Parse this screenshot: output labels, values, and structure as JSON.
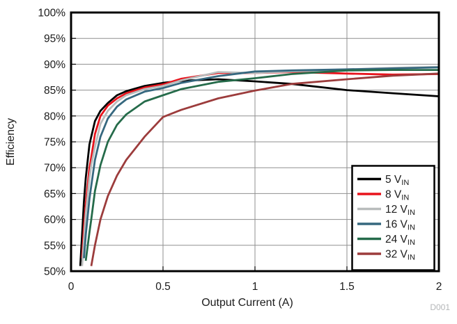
{
  "chart_data": {
    "type": "line",
    "title": "",
    "xlabel": "Output Current (A)",
    "ylabel": "Efficiency",
    "watermark": "D001",
    "xlim": [
      0,
      2
    ],
    "ylim": [
      50,
      100
    ],
    "grid": true,
    "legend_position": "bottom-right",
    "colors": {
      "grid": "#8f8f8f",
      "frame": "#000000",
      "text": "#1b1b1b",
      "legend_border": "#000000",
      "legend_bg": "#ffffff",
      "watermark": "#b4b6b8"
    },
    "xticks": [
      {
        "v": 0,
        "label": "0"
      },
      {
        "v": 0.5,
        "label": "0.5"
      },
      {
        "v": 1,
        "label": "1"
      },
      {
        "v": 1.5,
        "label": "1.5"
      },
      {
        "v": 2,
        "label": "2"
      }
    ],
    "yticks": [
      {
        "v": 50,
        "label": "50%"
      },
      {
        "v": 55,
        "label": "55%"
      },
      {
        "v": 60,
        "label": "60%"
      },
      {
        "v": 65,
        "label": "65%"
      },
      {
        "v": 70,
        "label": "70%"
      },
      {
        "v": 75,
        "label": "75%"
      },
      {
        "v": 80,
        "label": "80%"
      },
      {
        "v": 85,
        "label": "85%"
      },
      {
        "v": 90,
        "label": "90%"
      },
      {
        "v": 95,
        "label": "95%"
      },
      {
        "v": 100,
        "label": "100%"
      }
    ],
    "x": [
      0.05,
      0.06,
      0.07,
      0.08,
      0.1,
      0.11,
      0.13,
      0.16,
      0.2,
      0.25,
      0.3,
      0.4,
      0.5,
      0.6,
      0.8,
      1.0,
      1.2,
      1.5,
      1.75,
      2.0
    ],
    "series": [
      {
        "value": "5",
        "unit": "V",
        "sub": "IN",
        "color": "#000000",
        "values": [
          51,
          57,
          63.5,
          68,
          74.5,
          76,
          79,
          81,
          82.5,
          84,
          84.8,
          85.8,
          86.4,
          86.8,
          87.1,
          86.7,
          86.2,
          85.0,
          84.4,
          83.8
        ]
      },
      {
        "value": "8",
        "unit": "V",
        "sub": "IN",
        "color": "#e8131c",
        "values": [
          null,
          52.5,
          58.5,
          63,
          70,
          72,
          76.5,
          80,
          82,
          83.4,
          84.4,
          85.5,
          86.1,
          87.2,
          88.3,
          88.3,
          88.5,
          88.2,
          88.0,
          88.1
        ]
      },
      {
        "value": "12",
        "unit": "V",
        "sub": "IN",
        "color": "#b9bcbc",
        "values": [
          null,
          51,
          56,
          61,
          68,
          70.5,
          74,
          78.5,
          81,
          82.8,
          84,
          85.2,
          85.8,
          86.9,
          88.5,
          88.3,
          88.6,
          89.0,
          89.3,
          89.5
        ]
      },
      {
        "value": "16",
        "unit": "V",
        "sub": "IN",
        "color": "#36687f",
        "values": [
          null,
          null,
          52.5,
          57,
          64,
          66.5,
          71.5,
          76,
          79.5,
          81.8,
          83.2,
          84.7,
          85.4,
          86.4,
          87.7,
          88.6,
          88.8,
          89.0,
          89.2,
          89.4
        ]
      },
      {
        "value": "24",
        "unit": "V",
        "sub": "IN",
        "color": "#256b4a",
        "values": [
          null,
          null,
          null,
          52,
          57.5,
          60,
          65.5,
          70.5,
          75,
          78.3,
          80.3,
          82.8,
          84.0,
          85.2,
          86.6,
          87.3,
          88.1,
          88.8,
          88.9,
          88.9
        ]
      },
      {
        "value": "32",
        "unit": "V",
        "sub": "IN",
        "color": "#9c3c3c",
        "values": [
          null,
          null,
          null,
          null,
          null,
          51,
          55,
          60,
          64.5,
          68.5,
          71.5,
          76,
          79.8,
          81.2,
          83.4,
          84.9,
          86.2,
          87.1,
          87.8,
          88.2
        ]
      }
    ]
  }
}
